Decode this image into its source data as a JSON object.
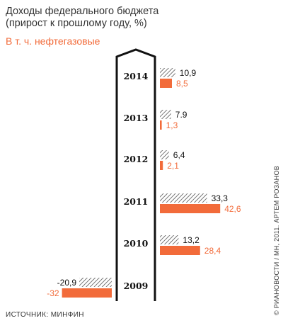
{
  "chart_data": {
    "type": "bar",
    "title": "Доходы федерального бюджета\n(прирост к прошлому году, %)",
    "categories": [
      "2014",
      "2013",
      "2012",
      "2011",
      "2010",
      "2009"
    ],
    "series": [
      {
        "values": [
          10.9,
          7.9,
          6.4,
          33.3,
          13.2,
          -20.9
        ],
        "labels": [
          "10,9",
          "7.9",
          "6,4",
          "33,3",
          "13,2",
          "-20,9"
        ],
        "color": "#555555",
        "pattern": "hatched"
      },
      {
        "name": "В т. ч. нефтегазовые",
        "values": [
          8.5,
          1.3,
          2.1,
          42.6,
          28.4,
          -32
        ],
        "labels": [
          "8,5",
          "1,3",
          "2,1",
          "42,6",
          "28,4",
          "-32"
        ],
        "color": "#f26b3a"
      }
    ]
  },
  "legend_label": "В т. ч. нефтегазовые",
  "source": "ИСТОЧНИК: МИНФИН",
  "credit": "© РИАНОВОСТИ / МН, 2011. АРТЕМ РОЗАНОВ"
}
